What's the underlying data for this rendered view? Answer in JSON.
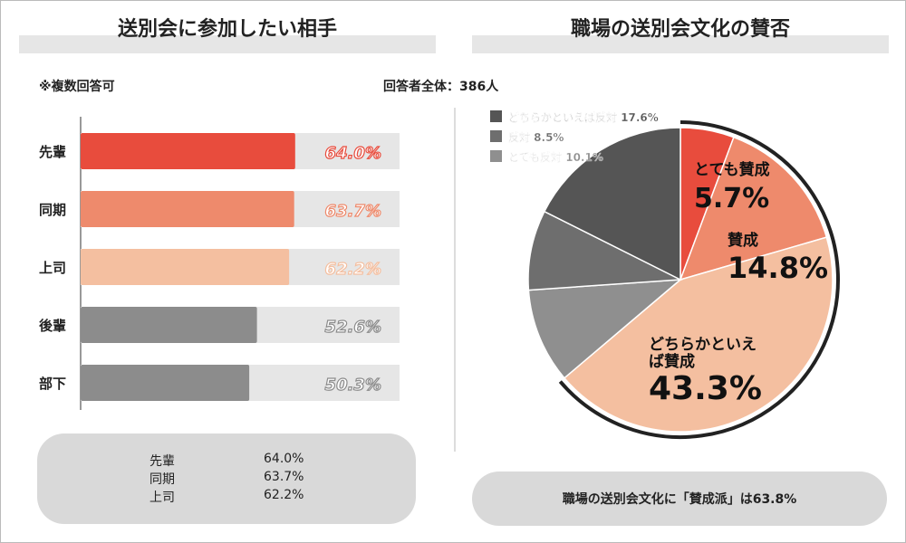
{
  "left": {
    "title": "送別会に参加したい相手",
    "note": "※複数回答可"
  },
  "right": {
    "title": "職場の送別会文化の賛否",
    "respondents": "回答者全体：386人",
    "summary": "職場の送別会文化に「賛成派」は63.8%"
  },
  "left_summary": [
    {
      "label": "先輩",
      "value": "64.0%"
    },
    {
      "label": "同期",
      "value": "63.7%"
    },
    {
      "label": "上司",
      "value": "62.2%"
    }
  ],
  "chart_data": [
    {
      "type": "bar",
      "orientation": "horizontal",
      "title": "送別会に参加したい相手",
      "categories": [
        "先輩",
        "同期",
        "上司",
        "後輩",
        "部下"
      ],
      "values": [
        64.0,
        63.7,
        62.2,
        52.6,
        50.3
      ],
      "labels": [
        "64.0%",
        "63.7%",
        "62.2%",
        "52.6%",
        "50.3%"
      ],
      "colors": [
        "#e84c3d",
        "#ee8a6c",
        "#f4bfa0",
        "#8c8c8c",
        "#8c8c8c"
      ],
      "track_color": "#e6e6e6"
    },
    {
      "type": "pie",
      "title": "職場の送別会文化の賛否",
      "slices": [
        {
          "name": "とても賛成",
          "value": 5.7,
          "label": "5.7%",
          "color": "#e84c3d"
        },
        {
          "name": "賛成",
          "value": 14.8,
          "label": "14.8%",
          "color": "#ee8a6c"
        },
        {
          "name": "どちらかといえば賛成",
          "value": 43.3,
          "label": "43.3%",
          "color": "#f4bfa0"
        },
        {
          "name": "とても反対",
          "value": 10.1,
          "label": "10.1%",
          "color": "#8f8f8f"
        },
        {
          "name": "反対",
          "value": 8.5,
          "label": "8.5%",
          "color": "#6e6e6e"
        },
        {
          "name": "どちらかといえば反対",
          "value": 17.6,
          "label": "17.6%",
          "color": "#555555"
        }
      ],
      "legend": [
        {
          "name": "どちらかといえば反対",
          "label": "17.6%",
          "color": "#555555"
        },
        {
          "name": "反対",
          "label": "8.5%",
          "color": "#6e6e6e"
        },
        {
          "name": "とても反対",
          "label": "10.1%",
          "color": "#8f8f8f"
        }
      ],
      "legend_placement": "top-left",
      "highlight_arc": {
        "label": "賛成派",
        "value": 63.8
      }
    }
  ]
}
